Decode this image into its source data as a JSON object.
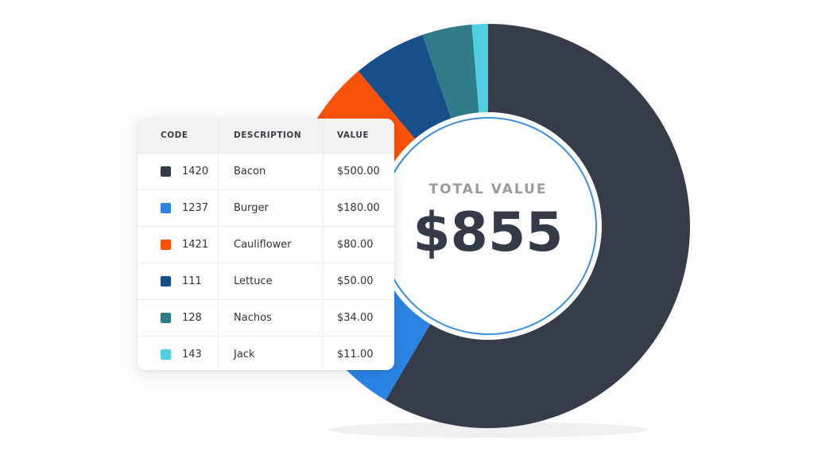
{
  "center": {
    "label": "TOTAL VALUE",
    "value": "$855"
  },
  "table": {
    "headers": {
      "code": "CODE",
      "description": "DESCRIPTION",
      "value": "VALUE"
    },
    "rows": [
      {
        "code": "1420",
        "description": "Bacon",
        "value": "$500.00",
        "color": "#373c4a"
      },
      {
        "code": "1237",
        "description": "Burger",
        "value": "$180.00",
        "color": "#2b84e4"
      },
      {
        "code": "1421",
        "description": "Cauliflower",
        "value": "$80.00",
        "color": "#fb5109"
      },
      {
        "code": "111",
        "description": "Lettuce",
        "value": "$50.00",
        "color": "#174f8a"
      },
      {
        "code": "128",
        "description": "Nachos",
        "value": "$34.00",
        "color": "#2f7b87"
      },
      {
        "code": "143",
        "description": "Jack",
        "value": "$11.00",
        "color": "#4fcfe0"
      }
    ]
  },
  "chart_data": {
    "type": "pie",
    "categories": [
      "Bacon",
      "Burger",
      "Cauliflower",
      "Lettuce",
      "Nachos",
      "Jack"
    ],
    "values": [
      500,
      180,
      80,
      50,
      34,
      11
    ],
    "colors": [
      "#373c4a",
      "#2b84e4",
      "#fb5109",
      "#174f8a",
      "#2f7b87",
      "#4fcfe0"
    ],
    "title": "",
    "legend": "table-left"
  }
}
